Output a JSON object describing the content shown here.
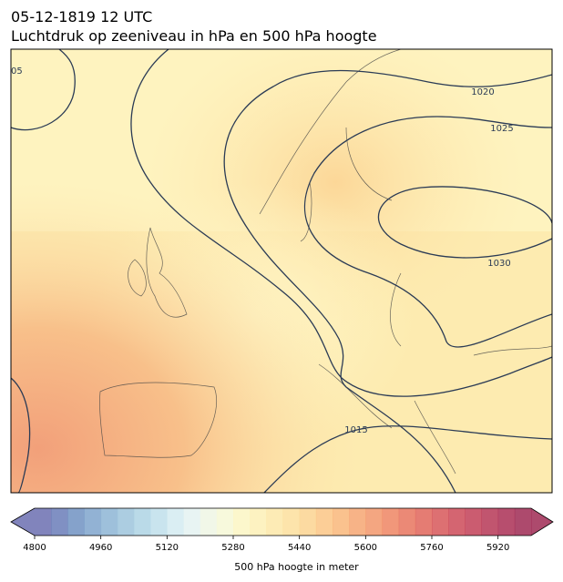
{
  "header": {
    "title": "05-12-1819 12 UTC",
    "subtitle": "Luchtdruk op zeeniveau in hPa en 500 hPa hoogte"
  },
  "map": {
    "isobar_labels": [
      "05",
      "1020",
      "1025",
      "1030",
      "1015"
    ]
  },
  "colorbar": {
    "label": "500 hPa hoogte in meter",
    "range": [
      4800,
      6000
    ],
    "ticks": [
      4800,
      4960,
      5120,
      5280,
      5440,
      5600,
      5760,
      5920
    ],
    "colors": [
      "#6b6fb0",
      "#6a7db8",
      "#7092c2",
      "#7fa4cc",
      "#8db5d5",
      "#9dc4dc",
      "#aed3e4",
      "#c0dfeb",
      "#d3ebf1",
      "#e4f2f1",
      "#eff6e4",
      "#f6f8d6",
      "#fbf6c3",
      "#fdf0b6",
      "#fde8a8",
      "#fddf9c",
      "#fcd390",
      "#fbc585",
      "#f9b77a",
      "#f6a672",
      "#f2966b",
      "#ee8563",
      "#e8745e",
      "#e0655b",
      "#d75759",
      "#cd4a58",
      "#c24057",
      "#b63756",
      "#aa2f55",
      "#9f2a54"
    ]
  }
}
